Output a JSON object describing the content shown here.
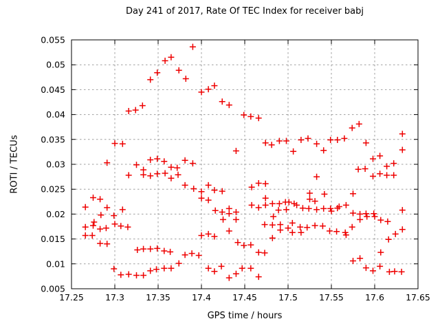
{
  "chart_data": {
    "type": "scatter",
    "title": "Day 241 of 2017, Rate Of TEC Index for receiver babj",
    "xlabel": "GPS time / hours",
    "ylabel": "ROTI / TECUs",
    "xlim": [
      17.25,
      17.65
    ],
    "ylim": [
      0.005,
      0.055
    ],
    "x_ticks": [
      {
        "value": 17.25,
        "label": "17.25"
      },
      {
        "value": 17.3,
        "label": "17.3"
      },
      {
        "value": 17.35,
        "label": "17.35"
      },
      {
        "value": 17.4,
        "label": "17.4"
      },
      {
        "value": 17.45,
        "label": "17.45"
      },
      {
        "value": 17.5,
        "label": "17.5"
      },
      {
        "value": 17.55,
        "label": "17.55"
      },
      {
        "value": 17.6,
        "label": "17.6"
      },
      {
        "value": 17.65,
        "label": "17.65"
      }
    ],
    "y_ticks": [
      {
        "value": 0.005,
        "label": "0.005"
      },
      {
        "value": 0.01,
        "label": "0.01"
      },
      {
        "value": 0.015,
        "label": "0.015"
      },
      {
        "value": 0.02,
        "label": "0.02"
      },
      {
        "value": 0.025,
        "label": "0.025"
      },
      {
        "value": 0.03,
        "label": "0.03"
      },
      {
        "value": 0.035,
        "label": "0.035"
      },
      {
        "value": 0.04,
        "label": "0.04"
      },
      {
        "value": 0.045,
        "label": "0.045"
      },
      {
        "value": 0.05,
        "label": "0.05"
      },
      {
        "value": 0.055,
        "label": "0.055"
      }
    ],
    "grid": true,
    "legend": "none",
    "marker": {
      "shape": "plus",
      "color": "#ee0000",
      "size": 9,
      "stroke_width": 1.5
    },
    "colors": {
      "background": "#ffffff",
      "axis": "#000000",
      "grid": "#9e9e9e",
      "text": "#000000",
      "marker": "#ee0000"
    },
    "series": [
      {
        "name": "ROTI",
        "points": [
          [
            17.341,
            0.047
          ],
          [
            17.349,
            0.0484
          ],
          [
            17.358,
            0.0508
          ],
          [
            17.365,
            0.0515
          ],
          [
            17.374,
            0.0489
          ],
          [
            17.382,
            0.0472
          ],
          [
            17.39,
            0.0536
          ],
          [
            17.4,
            0.0445
          ],
          [
            17.408,
            0.0451
          ],
          [
            17.415,
            0.0458
          ],
          [
            17.424,
            0.0426
          ],
          [
            17.432,
            0.0419
          ],
          [
            17.449,
            0.0399
          ],
          [
            17.457,
            0.0396
          ],
          [
            17.466,
            0.0393
          ],
          [
            17.316,
            0.0407
          ],
          [
            17.324,
            0.0409
          ],
          [
            17.332,
            0.0418
          ],
          [
            17.474,
            0.0343
          ],
          [
            17.481,
            0.0339
          ],
          [
            17.49,
            0.0347
          ],
          [
            17.498,
            0.0347
          ],
          [
            17.515,
            0.0349
          ],
          [
            17.523,
            0.0352
          ],
          [
            17.533,
            0.0341
          ],
          [
            17.541,
            0.0328
          ],
          [
            17.549,
            0.0349
          ],
          [
            17.557,
            0.0349
          ],
          [
            17.565,
            0.0352
          ],
          [
            17.574,
            0.0373
          ],
          [
            17.582,
            0.0381
          ],
          [
            17.59,
            0.0343
          ],
          [
            17.632,
            0.0361
          ],
          [
            17.632,
            0.0329
          ],
          [
            17.44,
            0.0327
          ],
          [
            17.506,
            0.0326
          ],
          [
            17.3,
            0.0342
          ],
          [
            17.309,
            0.0341
          ],
          [
            17.291,
            0.0303
          ],
          [
            17.325,
            0.0299
          ],
          [
            17.341,
            0.0309
          ],
          [
            17.349,
            0.0311
          ],
          [
            17.357,
            0.0306
          ],
          [
            17.365,
            0.0294
          ],
          [
            17.372,
            0.0293
          ],
          [
            17.381,
            0.0308
          ],
          [
            17.39,
            0.0302
          ],
          [
            17.598,
            0.0311
          ],
          [
            17.606,
            0.0317
          ],
          [
            17.614,
            0.0296
          ],
          [
            17.622,
            0.0302
          ],
          [
            17.581,
            0.029
          ],
          [
            17.589,
            0.0291
          ],
          [
            17.333,
            0.0289
          ],
          [
            17.316,
            0.0278
          ],
          [
            17.333,
            0.0279
          ],
          [
            17.341,
            0.0277
          ],
          [
            17.349,
            0.0281
          ],
          [
            17.358,
            0.0282
          ],
          [
            17.365,
            0.0272
          ],
          [
            17.373,
            0.0279
          ],
          [
            17.381,
            0.0258
          ],
          [
            17.391,
            0.0251
          ],
          [
            17.598,
            0.0276
          ],
          [
            17.606,
            0.0281
          ],
          [
            17.614,
            0.0278
          ],
          [
            17.622,
            0.0278
          ],
          [
            17.533,
            0.0275
          ],
          [
            17.458,
            0.0254
          ],
          [
            17.466,
            0.0262
          ],
          [
            17.474,
            0.0261
          ],
          [
            17.408,
            0.0258
          ],
          [
            17.275,
            0.0233
          ],
          [
            17.283,
            0.023
          ],
          [
            17.4,
            0.0245
          ],
          [
            17.415,
            0.0248
          ],
          [
            17.424,
            0.0246
          ],
          [
            17.4,
            0.0232
          ],
          [
            17.408,
            0.0228
          ],
          [
            17.474,
            0.0232
          ],
          [
            17.525,
            0.0242
          ],
          [
            17.542,
            0.024
          ],
          [
            17.575,
            0.0241
          ],
          [
            17.525,
            0.023
          ],
          [
            17.266,
            0.0214
          ],
          [
            17.291,
            0.0213
          ],
          [
            17.309,
            0.0209
          ],
          [
            17.416,
            0.0207
          ],
          [
            17.424,
            0.0204
          ],
          [
            17.432,
            0.0211
          ],
          [
            17.432,
            0.0201
          ],
          [
            17.44,
            0.0204
          ],
          [
            17.458,
            0.0218
          ],
          [
            17.466,
            0.0213
          ],
          [
            17.474,
            0.0218
          ],
          [
            17.482,
            0.0221
          ],
          [
            17.49,
            0.0221
          ],
          [
            17.489,
            0.0208
          ],
          [
            17.497,
            0.0224
          ],
          [
            17.501,
            0.0224
          ],
          [
            17.498,
            0.0209
          ],
          [
            17.507,
            0.0221
          ],
          [
            17.51,
            0.0218
          ],
          [
            17.517,
            0.0212
          ],
          [
            17.524,
            0.0211
          ],
          [
            17.533,
            0.0209
          ],
          [
            17.541,
            0.0211
          ],
          [
            17.549,
            0.0211
          ],
          [
            17.55,
            0.0206
          ],
          [
            17.557,
            0.0212
          ],
          [
            17.559,
            0.0215
          ],
          [
            17.567,
            0.0218
          ],
          [
            17.531,
            0.0226
          ],
          [
            17.632,
            0.0208
          ],
          [
            17.284,
            0.0198
          ],
          [
            17.299,
            0.0197
          ],
          [
            17.425,
            0.0189
          ],
          [
            17.44,
            0.0189
          ],
          [
            17.483,
            0.0195
          ],
          [
            17.575,
            0.0202
          ],
          [
            17.583,
            0.02
          ],
          [
            17.583,
            0.0189
          ],
          [
            17.59,
            0.0201
          ],
          [
            17.591,
            0.0195
          ],
          [
            17.599,
            0.0201
          ],
          [
            17.6,
            0.0195
          ],
          [
            17.607,
            0.0188
          ],
          [
            17.615,
            0.0185
          ],
          [
            17.276,
            0.0184
          ],
          [
            17.275,
            0.0177
          ],
          [
            17.266,
            0.0174
          ],
          [
            17.3,
            0.018
          ],
          [
            17.307,
            0.0176
          ],
          [
            17.315,
            0.0174
          ],
          [
            17.283,
            0.017
          ],
          [
            17.29,
            0.0172
          ],
          [
            17.266,
            0.0157
          ],
          [
            17.274,
            0.0157
          ],
          [
            17.4,
            0.0157
          ],
          [
            17.408,
            0.016
          ],
          [
            17.415,
            0.0155
          ],
          [
            17.432,
            0.0166
          ],
          [
            17.473,
            0.0179
          ],
          [
            17.482,
            0.0178
          ],
          [
            17.491,
            0.0179
          ],
          [
            17.491,
            0.0168
          ],
          [
            17.5,
            0.0172
          ],
          [
            17.505,
            0.0182
          ],
          [
            17.505,
            0.0163
          ],
          [
            17.514,
            0.0174
          ],
          [
            17.515,
            0.0163
          ],
          [
            17.522,
            0.0173
          ],
          [
            17.531,
            0.0177
          ],
          [
            17.54,
            0.0176
          ],
          [
            17.548,
            0.0166
          ],
          [
            17.556,
            0.0165
          ],
          [
            17.566,
            0.0163
          ],
          [
            17.567,
            0.0158
          ],
          [
            17.574,
            0.0174
          ],
          [
            17.632,
            0.0169
          ],
          [
            17.624,
            0.016
          ],
          [
            17.482,
            0.0152
          ],
          [
            17.616,
            0.0149
          ],
          [
            17.283,
            0.0141
          ],
          [
            17.291,
            0.014
          ],
          [
            17.442,
            0.0143
          ],
          [
            17.449,
            0.0137
          ],
          [
            17.457,
            0.0138
          ],
          [
            17.326,
            0.0128
          ],
          [
            17.333,
            0.013
          ],
          [
            17.341,
            0.013
          ],
          [
            17.349,
            0.0131
          ],
          [
            17.357,
            0.0126
          ],
          [
            17.364,
            0.0124
          ],
          [
            17.381,
            0.0118
          ],
          [
            17.389,
            0.0121
          ],
          [
            17.397,
            0.0117
          ],
          [
            17.466,
            0.0123
          ],
          [
            17.473,
            0.0122
          ],
          [
            17.607,
            0.0123
          ],
          [
            17.575,
            0.0106
          ],
          [
            17.583,
            0.0111
          ],
          [
            17.374,
            0.0101
          ],
          [
            17.299,
            0.009
          ],
          [
            17.307,
            0.0078
          ],
          [
            17.316,
            0.0079
          ],
          [
            17.325,
            0.0077
          ],
          [
            17.333,
            0.0077
          ],
          [
            17.341,
            0.0086
          ],
          [
            17.348,
            0.0089
          ],
          [
            17.357,
            0.0091
          ],
          [
            17.365,
            0.0091
          ],
          [
            17.408,
            0.0091
          ],
          [
            17.415,
            0.0085
          ],
          [
            17.423,
            0.0095
          ],
          [
            17.432,
            0.0072
          ],
          [
            17.44,
            0.008
          ],
          [
            17.447,
            0.0091
          ],
          [
            17.457,
            0.0091
          ],
          [
            17.466,
            0.0074
          ],
          [
            17.59,
            0.0092
          ],
          [
            17.598,
            0.0086
          ],
          [
            17.606,
            0.0095
          ],
          [
            17.617,
            0.0084
          ],
          [
            17.623,
            0.0085
          ],
          [
            17.631,
            0.0084
          ]
        ]
      }
    ]
  }
}
